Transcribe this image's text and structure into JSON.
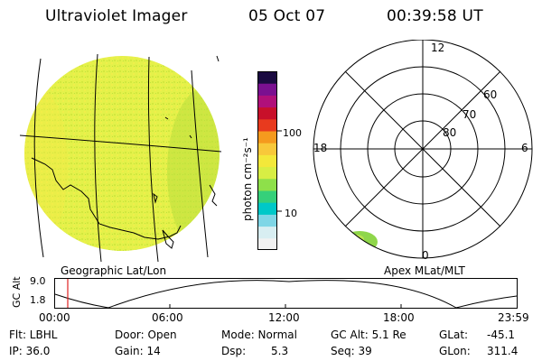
{
  "header": {
    "title": "Ultraviolet Imager",
    "date": "05 Oct 07",
    "time": "00:39:58 UT"
  },
  "colorbar": {
    "unit_label": "photon cm⁻²s⁻¹",
    "ticks": [
      "100",
      "10"
    ],
    "colors": [
      "#f2f2f2",
      "#d8eef2",
      "#7fd6e6",
      "#00c8c8",
      "#35d07a",
      "#8ee04a",
      "#d8ee44",
      "#f3e83a",
      "#f8c83a",
      "#f59a1e",
      "#e83a1e",
      "#c8102a",
      "#b0107a",
      "#7a1090",
      "#1a0a40"
    ]
  },
  "geo_panel": {
    "caption": "Geographic Lat/Lon",
    "disk_color": "#e4f14a"
  },
  "polar_panel": {
    "caption": "Apex MLat/MLT",
    "mlt_labels": {
      "top": "12",
      "left": "18",
      "right": "6",
      "bottom": "0"
    },
    "lat_labels": [
      "60",
      "70",
      "80"
    ],
    "aurora_color": "#8fd64a"
  },
  "altitude_plot": {
    "ylabel": "GC Alt",
    "yticks": [
      "9.0",
      "1.8"
    ],
    "xticks": [
      "00:00",
      "06:00",
      "12:00",
      "18:00",
      "23:59"
    ],
    "marker_color": "#e02020"
  },
  "info": {
    "flt": "Flt: LBHL",
    "ip": "IP: 36.0",
    "door": "Door: Open",
    "gain": "Gain: 14",
    "mode": "Mode: Normal",
    "dsp_label": "Dsp:",
    "dsp_value": "5.3",
    "gc_alt": "GC Alt: 5.1 Re",
    "seq": "Seq: 39",
    "glat_label": "GLat:",
    "glat_value": "-45.1",
    "glon_label": "GLon:",
    "glon_value": "311.4"
  }
}
